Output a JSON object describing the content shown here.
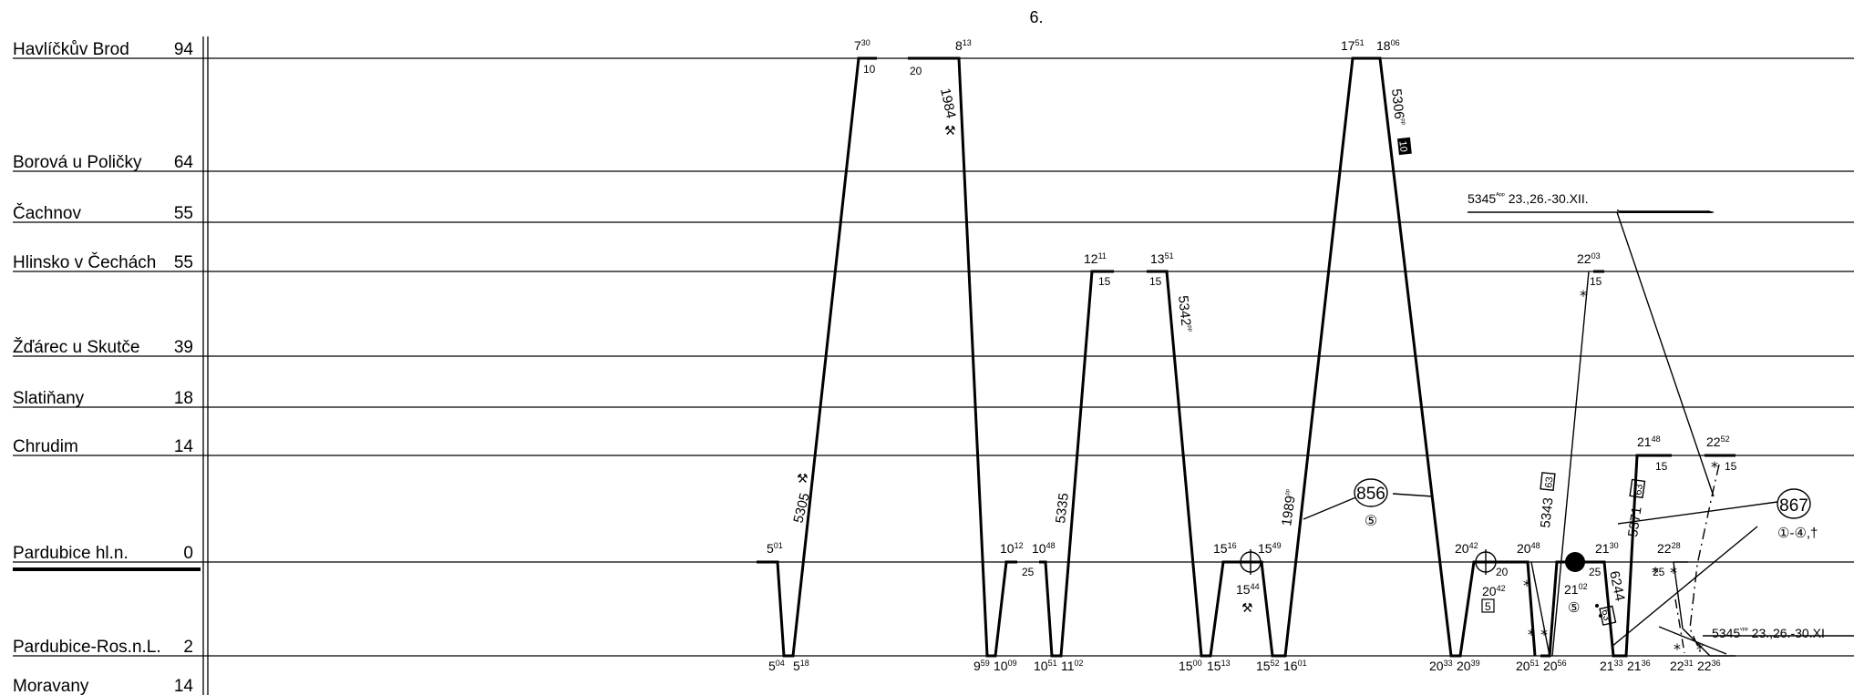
{
  "page_number": "6.",
  "stations": [
    {
      "name": "Havlíčkův Brod",
      "km": "94"
    },
    {
      "name": "Borová u Poličky",
      "km": "64"
    },
    {
      "name": "Čachnov",
      "km": "55"
    },
    {
      "name": "Hlinsko v Čechách",
      "km": "55"
    },
    {
      "name": "Žďárec u Skutče",
      "km": "39"
    },
    {
      "name": "Slatiňany",
      "km": "18"
    },
    {
      "name": "Chrudim",
      "km": "14"
    },
    {
      "name": "Pardubice hl.n.",
      "km": "0"
    },
    {
      "name": "Pardubice-Ros.n.L.",
      "km": "2"
    },
    {
      "name": "Moravany",
      "km": "14"
    }
  ],
  "train_numbers": {
    "t5305": "5305",
    "t1984": "1984",
    "t5335": "5335",
    "t5342": "5342",
    "t5342_sup": "ᵖᵖ",
    "t1989": "1989",
    "t1989_sup": "ᵖᵖ",
    "t5306": "5306",
    "t5306_sup": "ᵖᵖ",
    "t5343": "5343",
    "t5371": "5371",
    "t6244": "6244",
    "t5345a": "5345",
    "t5345a_sup": "ᴬᵖᵖ",
    "t5345a_note": "23.,26.-30.XII.",
    "t5345v": "5345",
    "t5345v_sup": "ᵛᵖᵖ",
    "t5345v_note": "23.,26.-30.XI"
  },
  "boxed_marks": {
    "b5306": "10",
    "b5343": "63",
    "b5371": "63",
    "b6244": "63",
    "b2042": "5"
  },
  "circle_labels": {
    "c856": "856",
    "c856_days": "⑤",
    "c867": "867",
    "c867_days": "①-④,†",
    "c2102_days": "⑤"
  },
  "times": {
    "h_730": "7",
    "h_730s": "30",
    "d_730": "10",
    "h_813": "8",
    "h_813s": "13",
    "d_813": "20",
    "h_1751": "17",
    "h_1751s": "51",
    "h_1806": "18",
    "h_1806s": "06",
    "hl_1211": "12",
    "hl_1211s": "11",
    "dl_1211": "15",
    "hl_1351": "13",
    "hl_1351s": "51",
    "dl_1351": "15",
    "hl_2203": "22",
    "hl_2203s": "03",
    "dl_2203": "15",
    "ch_2148": "21",
    "ch_2148s": "48",
    "dch_2148": "15",
    "ch_2252": "22",
    "ch_2252s": "52",
    "dch_2252": "15",
    "p_501": "5",
    "p_501s": "01",
    "p_1012": "10",
    "p_1012s": "12",
    "p_1048": "10",
    "p_1048s": "48",
    "dp_1048": "25",
    "p_1516": "15",
    "p_1516s": "16",
    "p_1549": "15",
    "p_1549s": "49",
    "p_1544": "15",
    "p_1544s": "44",
    "p_2042": "20",
    "p_2042s": "42",
    "dp_2042": "20",
    "p_2042b": "20",
    "p_2042bs": "42",
    "p_2048": "20",
    "p_2048s": "48",
    "p_2130": "21",
    "p_2130s": "30",
    "dp_2130": "25",
    "p_2102": "21",
    "p_2102s": "02",
    "p_2228": "22",
    "p_2228s": "28",
    "dp_2228": "25",
    "r_504": "5",
    "r_504s": "04",
    "r_518": "5",
    "r_518s": "18",
    "r_959": "9",
    "r_959s": "59",
    "r_1009": "10",
    "r_1009s": "09",
    "r_1051": "10",
    "r_1051s": "51",
    "r_1102": "11",
    "r_1102s": "02",
    "r_1500": "15",
    "r_1500s": "00",
    "r_1513": "15",
    "r_1513s": "13",
    "r_1552": "15",
    "r_1552s": "52",
    "r_1601": "16",
    "r_1601s": "01",
    "r_2033": "20",
    "r_2033s": "33",
    "r_2039": "20",
    "r_2039s": "39",
    "r_2051": "20",
    "r_2051s": "51",
    "r_2056": "20",
    "r_2056s": "56",
    "r_2133": "21",
    "r_2133s": "33",
    "r_2136": "21",
    "r_2136s": "36",
    "r_2231": "22",
    "r_2231s": "31",
    "r_2236": "22",
    "r_2236s": "36"
  }
}
